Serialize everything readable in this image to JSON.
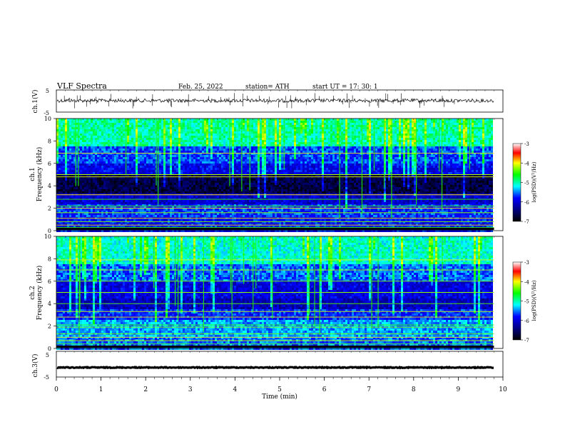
{
  "header": {
    "title": "VLF  Spectra",
    "date": "Feb. 25, 2022",
    "station": "station= ATH",
    "start": "start  UT  =    17: 30: 1"
  },
  "chart_data": [
    {
      "type": "line",
      "panel": "ch1-waveform",
      "ylabel": "ch.1(V)",
      "yticks": [
        "5",
        "-5"
      ],
      "ylim": [
        -5,
        5
      ],
      "xlim": [
        0,
        10
      ],
      "baseline": 0.2,
      "data_end_min": 9.8
    },
    {
      "type": "heatmap",
      "panel": "ch1-spectrogram",
      "ylabel": "ch.1\nFrequency (kHz)",
      "yticks": [
        "0",
        "2",
        "4",
        "6",
        "8",
        "10"
      ],
      "ylim": [
        0,
        10
      ],
      "xlim": [
        0,
        10
      ],
      "data_end_min": 9.8,
      "colorbar": {
        "label": "log(PSD)(V²/Hz)",
        "ticks": [
          "-3",
          "-4",
          "-5",
          "-6",
          "-7"
        ],
        "range": [
          -7,
          -3
        ]
      }
    },
    {
      "type": "heatmap",
      "panel": "ch2-spectrogram",
      "ylabel": "ch.2\nFrequency (kHz)",
      "yticks": [
        "0",
        "2",
        "4",
        "6",
        "8",
        "10"
      ],
      "ylim": [
        0,
        10
      ],
      "xlim": [
        0,
        10
      ],
      "data_end_min": 9.8,
      "colorbar": {
        "label": "log(PSD)(V²/Hz)",
        "ticks": [
          "-3",
          "-4",
          "-5",
          "-6",
          "-7"
        ],
        "range": [
          -7,
          -3
        ]
      }
    },
    {
      "type": "line",
      "panel": "ch3-waveform",
      "ylabel": "ch.3(V)",
      "yticks": [
        "5",
        "-5"
      ],
      "ylim": [
        -5,
        5
      ],
      "xlim": [
        0,
        10
      ],
      "baseline": -1.3,
      "data_end_min": 9.8
    }
  ],
  "x_axis": {
    "label": "Time  (min)",
    "ticks": [
      "0",
      "1",
      "2",
      "3",
      "4",
      "5",
      "6",
      "7",
      "8",
      "9",
      "10"
    ]
  },
  "colors": {
    "colormap": [
      "#00006a",
      "#0000ff",
      "#00ffff",
      "#00ff00",
      "#ffff00",
      "#ff0000",
      "#ffffff"
    ],
    "trace": "#000000"
  }
}
